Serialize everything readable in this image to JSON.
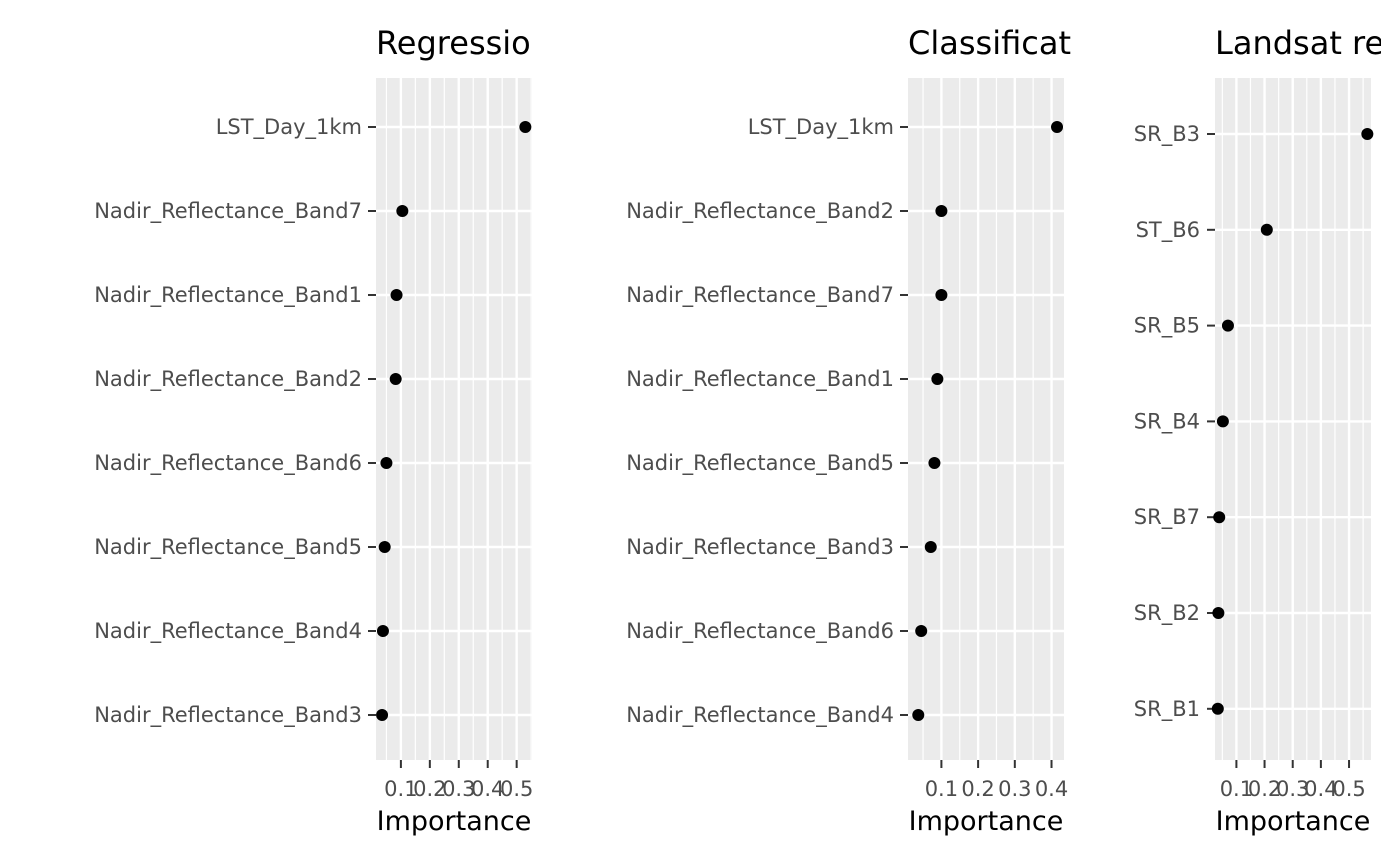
{
  "chart_data": [
    {
      "type": "scatter",
      "title": "Regressio",
      "xlabel": "Importance",
      "x_ticks": [
        0.1,
        0.2,
        0.3,
        0.4,
        0.5
      ],
      "x_tick_labels": [
        "0.1",
        "0.2",
        "0.3",
        "0.4",
        "0.5"
      ],
      "xlim": [
        0.014,
        0.553
      ],
      "categories": [
        "LST_Day_1km",
        "Nadir_Reflectance_Band7",
        "Nadir_Reflectance_Band1",
        "Nadir_Reflectance_Band2",
        "Nadir_Reflectance_Band6",
        "Nadir_Reflectance_Band5",
        "Nadir_Reflectance_Band4",
        "Nadir_Reflectance_Band3"
      ],
      "values": [
        0.53,
        0.105,
        0.085,
        0.082,
        0.05,
        0.044,
        0.038,
        0.035
      ],
      "grid": true,
      "point_color": "#000000",
      "panel_background": "#ebebeb"
    },
    {
      "type": "scatter",
      "title": "Classificat",
      "xlabel": "Importance",
      "x_ticks": [
        0.1,
        0.2,
        0.3,
        0.4
      ],
      "x_tick_labels": [
        "0.1",
        "0.2",
        "0.3",
        "0.4"
      ],
      "xlim": [
        0.009,
        0.434
      ],
      "categories": [
        "LST_Day_1km",
        "Nadir_Reflectance_Band2",
        "Nadir_Reflectance_Band7",
        "Nadir_Reflectance_Band1",
        "Nadir_Reflectance_Band5",
        "Nadir_Reflectance_Band3",
        "Nadir_Reflectance_Band6",
        "Nadir_Reflectance_Band4"
      ],
      "values": [
        0.415,
        0.1,
        0.1,
        0.089,
        0.081,
        0.071,
        0.045,
        0.037
      ],
      "grid": true,
      "point_color": "#000000",
      "panel_background": "#ebebeb"
    },
    {
      "type": "scatter",
      "title": "Landsat re",
      "xlabel": "Importance",
      "x_ticks": [
        0.1,
        0.2,
        0.3,
        0.4,
        0.5
      ],
      "x_tick_labels": [
        "0.1",
        "0.2",
        "0.3",
        "0.4",
        "0.5"
      ],
      "xlim": [
        0.024,
        0.578
      ],
      "categories": [
        "SR_B3",
        "ST_B6",
        "SR_B5",
        "SR_B4",
        "SR_B7",
        "SR_B2",
        "SR_B1"
      ],
      "values": [
        0.565,
        0.208,
        0.07,
        0.052,
        0.039,
        0.036,
        0.034
      ],
      "grid": true,
      "point_color": "#000000",
      "panel_background": "#ebebeb"
    }
  ]
}
